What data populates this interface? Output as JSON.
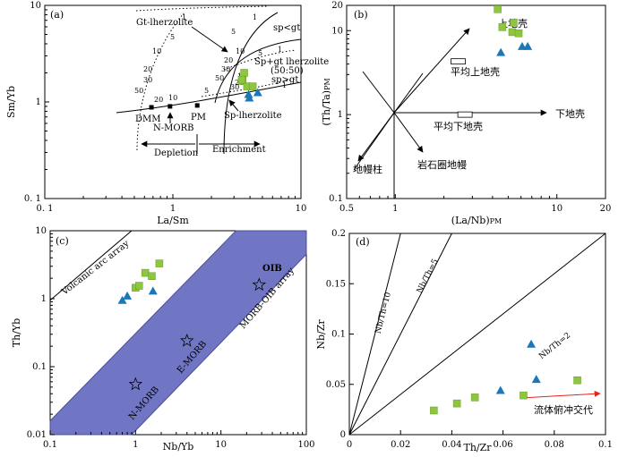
{
  "chart_data": [
    {
      "panel": "(a)",
      "type": "scatter",
      "xlabel": "La/Sm",
      "ylabel": "Sm/Yb",
      "xscale": "log",
      "yscale": "log",
      "xlim": [
        0.1,
        10
      ],
      "ylim": [
        0.1,
        10
      ],
      "x_ticks": [
        0.1,
        1,
        10
      ],
      "x_tick_labels": [
        "0. 1",
        "1",
        "10"
      ],
      "y_ticks": [
        0.1,
        1,
        10
      ],
      "y_tick_labels": [
        "0. 1",
        "1",
        "10"
      ],
      "sources": [
        {
          "name": "DMM",
          "x": 0.68,
          "y": 0.88
        },
        {
          "name": "N-MORB",
          "x": 0.95,
          "y": 0.9
        },
        {
          "name": "PM",
          "x": 1.55,
          "y": 0.92
        }
      ],
      "squares": [
        [
          3.5,
          1.65
        ],
        [
          3.6,
          2.0
        ],
        [
          3.8,
          1.45
        ],
        [
          4.2,
          1.45
        ],
        [
          3.45,
          1.7
        ]
      ],
      "triangles": [
        [
          3.9,
          1.2
        ],
        [
          3.95,
          1.1
        ],
        [
          4.6,
          1.25
        ]
      ],
      "labels": {
        "gt": "Gt-lherzolite",
        "sp_lt_gt": "sp<gt",
        "sp_gt_1": "Sp+gt lherzolite",
        "sp_gt_2": "(50:50)",
        "sp_gt_3": "sp>gt",
        "sp_lherz": "Sp-lherzolite",
        "depletion": "Depletion",
        "enrichment": "Enrichment",
        "dmm": "DMM",
        "nmorb": "N-MORB",
        "pm": "PM"
      },
      "melt_labels": {
        "gt": [
          "1",
          "5",
          "10",
          "20",
          "30",
          "50"
        ],
        "sp_lt_gt": [
          "1",
          "5",
          "10",
          "20",
          "30",
          "50"
        ],
        "sp_gt": [
          "1",
          "5",
          "10",
          "20",
          "30"
        ],
        "sp": [
          "20",
          "10",
          "5",
          "1"
        ]
      }
    },
    {
      "panel": "(b)",
      "type": "scatter",
      "xlabel": "(La/Nb)PM",
      "ylabel": "(Th/Ta)PM",
      "xscale": "log",
      "yscale": "log",
      "xlim": [
        0.5,
        20
      ],
      "ylim": [
        0.1,
        20
      ],
      "x_ticks": [
        0.5,
        1,
        10,
        20
      ],
      "x_tick_labels": [
        "0.5",
        "1",
        "10",
        "20"
      ],
      "y_ticks": [
        0.1,
        1,
        10,
        20
      ],
      "y_tick_labels": [
        "0.1",
        "1",
        "10",
        "20"
      ],
      "squares": [
        [
          4.3,
          18
        ],
        [
          4.6,
          11
        ],
        [
          5.4,
          12.5
        ],
        [
          5.3,
          9.6
        ],
        [
          5.8,
          9.3
        ]
      ],
      "triangles": [
        [
          4.5,
          5.5
        ],
        [
          6.1,
          6.5
        ],
        [
          6.6,
          6.5
        ]
      ],
      "labels": {
        "upper_crust": "上地壳",
        "avg_upper": "平均上地壳",
        "lower_crust": "下地壳",
        "avg_lower": "平均下地壳",
        "plume": "地幔柱",
        "lith": "岩石圈地幔"
      },
      "reference_boxes": [
        {
          "name": "平均上地壳",
          "x": 2.45,
          "y": 4.3
        },
        {
          "name": "平均下地壳",
          "x": 2.7,
          "y": 1.0
        }
      ]
    },
    {
      "panel": "(c)",
      "type": "scatter",
      "xlabel": "Nb/Yb",
      "ylabel": "Th/Yb",
      "xscale": "log",
      "yscale": "log",
      "xlim": [
        0.1,
        100
      ],
      "ylim": [
        0.01,
        10
      ],
      "x_ticks": [
        0.1,
        1,
        10,
        100
      ],
      "x_tick_labels": [
        "0.1",
        "1",
        "10",
        "100"
      ],
      "y_ticks": [
        0.01,
        0.1,
        1,
        10
      ],
      "y_tick_labels": [
        "0.01",
        "0.1",
        "1",
        "10"
      ],
      "stars": [
        {
          "name": "N-MORB",
          "x": 1.0,
          "y": 0.055
        },
        {
          "name": "E-MORB",
          "x": 4.0,
          "y": 0.24
        },
        {
          "name": "OIB",
          "x": 28,
          "y": 1.6
        }
      ],
      "squares": [
        [
          1.0,
          1.45
        ],
        [
          1.1,
          1.55
        ],
        [
          1.3,
          2.4
        ],
        [
          1.55,
          2.15
        ],
        [
          1.9,
          3.3
        ]
      ],
      "triangles": [
        [
          0.7,
          0.95
        ],
        [
          0.8,
          1.1
        ],
        [
          1.6,
          1.3
        ]
      ],
      "labels": {
        "volcanic": "Volcanic arc array",
        "morb_oib": "MORB-OIB array",
        "oib": "OIB",
        "emorb": "E-MORB",
        "nmorb": "N-MORB"
      }
    },
    {
      "panel": "(d)",
      "type": "scatter",
      "xlabel": "Th/Zr",
      "ylabel": "Nb/Zr",
      "xlim": [
        0,
        0.1
      ],
      "ylim": [
        0,
        0.2
      ],
      "x_ticks": [
        0,
        0.02,
        0.04,
        0.06,
        0.08,
        0.1
      ],
      "x_tick_labels": [
        "0",
        "0.02",
        "0.04",
        "0.06",
        "0.08",
        "0.1"
      ],
      "y_ticks": [
        0,
        0.05,
        0.1,
        0.15,
        0.2
      ],
      "y_tick_labels": [
        "0",
        "0.05",
        "0.1",
        "0.15",
        "0.2"
      ],
      "ratio_lines": [
        {
          "label": "Nb/Th=10",
          "ratio": 10
        },
        {
          "label": "Nb/Th=5",
          "ratio": 5
        },
        {
          "label": "Nb/Th=2",
          "ratio": 2
        }
      ],
      "squares": [
        [
          0.033,
          0.024
        ],
        [
          0.042,
          0.031
        ],
        [
          0.049,
          0.037
        ],
        [
          0.068,
          0.039
        ],
        [
          0.089,
          0.054
        ]
      ],
      "triangles": [
        [
          0.059,
          0.044
        ],
        [
          0.071,
          0.09
        ],
        [
          0.073,
          0.055
        ]
      ],
      "labels": {
        "fluid": "流体俯冲交代"
      }
    }
  ],
  "colors": {
    "square": "#8dc63f",
    "triangle": "#1a78b8",
    "band": "#7076c4",
    "band_edge": "#4a4f9c",
    "arrow_red": "#e2231a"
  }
}
